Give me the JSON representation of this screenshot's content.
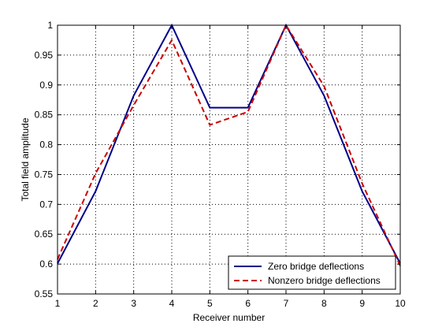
{
  "chart_data": {
    "type": "line",
    "title": "",
    "xlabel": "Receiver number",
    "ylabel": "Total field amplitude",
    "xlim": [
      1,
      10
    ],
    "ylim": [
      0.55,
      1.0
    ],
    "x": [
      1,
      2,
      3,
      4,
      5,
      6,
      7,
      8,
      9,
      10
    ],
    "xticks": [
      "1",
      "2",
      "3",
      "4",
      "5",
      "6",
      "7",
      "8",
      "9",
      "10"
    ],
    "yticks": [
      "0.55",
      "0.6",
      "0.65",
      "0.7",
      "0.75",
      "0.8",
      "0.85",
      "0.9",
      "0.95",
      "1"
    ],
    "grid": true,
    "legend_position": "bottom-right",
    "series": [
      {
        "name": "Zero bridge deflections",
        "color": "#00008B",
        "style": "solid",
        "values": [
          0.601,
          0.722,
          0.882,
          1.0,
          0.862,
          0.862,
          1.0,
          0.882,
          0.722,
          0.601
        ]
      },
      {
        "name": "Nonzero bridge deflections",
        "color": "#CC0000",
        "style": "dashed",
        "values": [
          0.608,
          0.752,
          0.866,
          0.975,
          0.833,
          0.855,
          1.0,
          0.898,
          0.735,
          0.597
        ]
      }
    ]
  }
}
